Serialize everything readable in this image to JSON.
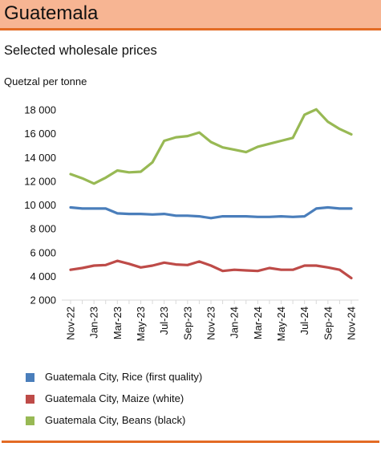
{
  "header": {
    "title": "Guatemala"
  },
  "subtitle": "Selected wholesale prices",
  "colors": {
    "header_bg": "#f7b593",
    "accent": "#e36b24"
  },
  "chart_data": {
    "type": "line",
    "ylabel": "Quetzal per tonne",
    "ylim": [
      2000,
      18000
    ],
    "yticks": [
      2000,
      4000,
      6000,
      8000,
      10000,
      12000,
      14000,
      16000,
      18000
    ],
    "ytick_labels": [
      "2 000",
      "4 000",
      "6 000",
      "8 000",
      "10 000",
      "12 000",
      "14 000",
      "16 000",
      "18 000"
    ],
    "x": [
      "Nov-22",
      "Dec-22",
      "Jan-23",
      "Feb-23",
      "Mar-23",
      "Apr-23",
      "May-23",
      "Jun-23",
      "Jul-23",
      "Aug-23",
      "Sep-23",
      "Oct-23",
      "Nov-23",
      "Dec-23",
      "Jan-24",
      "Feb-24",
      "Mar-24",
      "Apr-24",
      "May-24",
      "Jun-24",
      "Jul-24",
      "Aug-24",
      "Sep-24",
      "Oct-24",
      "Nov-24"
    ],
    "xtick_labels": [
      "Nov-22",
      "Jan-23",
      "Mar-23",
      "May-23",
      "Jul-23",
      "Sep-23",
      "Nov-23",
      "Jan-24",
      "Mar-24",
      "May-24",
      "Jul-24",
      "Sep-24",
      "Nov-24"
    ],
    "grid": false,
    "legend_position": "bottom",
    "series": [
      {
        "name": "Guatemala City, Rice (first quality)",
        "color": "#4a7ebb",
        "values": [
          9800,
          9700,
          9700,
          9700,
          9300,
          9250,
          9250,
          9200,
          9250,
          9100,
          9100,
          9050,
          8900,
          9050,
          9050,
          9050,
          9000,
          9000,
          9050,
          9000,
          9050,
          9700,
          9800,
          9700,
          9700
        ]
      },
      {
        "name": "Guatemala City, Maize (white)",
        "color": "#be4b48",
        "values": [
          4550,
          4700,
          4900,
          4950,
          5300,
          5050,
          4750,
          4900,
          5150,
          5000,
          4950,
          5250,
          4900,
          4450,
          4550,
          4500,
          4450,
          4700,
          4550,
          4550,
          4900,
          4900,
          4750,
          4550,
          3850
        ]
      },
      {
        "name": "Guatemala City, Beans (black)",
        "color": "#98b954",
        "values": [
          12600,
          12250,
          11800,
          12300,
          12900,
          12750,
          12800,
          13600,
          15400,
          15700,
          15800,
          16100,
          15300,
          14850,
          14650,
          14450,
          14900,
          15150,
          15400,
          15650,
          17600,
          18050,
          17000,
          16400,
          15950
        ]
      }
    ]
  }
}
